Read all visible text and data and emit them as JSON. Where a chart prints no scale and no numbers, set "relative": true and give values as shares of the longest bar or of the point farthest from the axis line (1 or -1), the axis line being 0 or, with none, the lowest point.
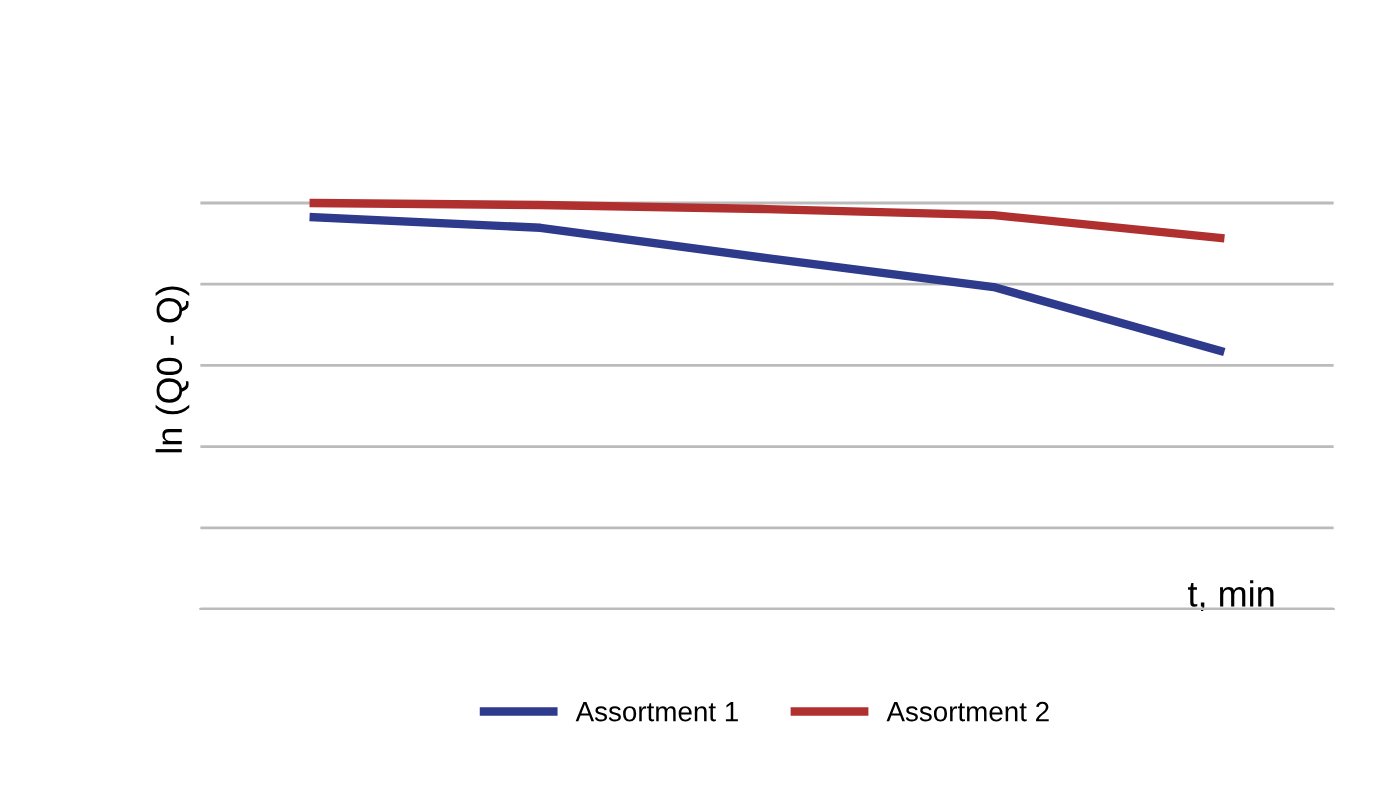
{
  "chart_data": {
    "type": "line",
    "relative": true,
    "ylabel": "ln (Q0 - Q)",
    "xlabel": "t, min",
    "categories": [
      null,
      null,
      null,
      null,
      null
    ],
    "series": [
      {
        "name": "Assortment 1",
        "color": "#2e3a8c",
        "values": [
          0.965,
          0.939,
          0.864,
          0.793,
          0.636
        ]
      },
      {
        "name": "Assortment 2",
        "color": "#b03030",
        "values": [
          1,
          0.995,
          0.985,
          0.97,
          0.914
        ]
      }
    ],
    "grid": "y",
    "legend": "bottom",
    "line_style": "solid",
    "marker": "none"
  }
}
